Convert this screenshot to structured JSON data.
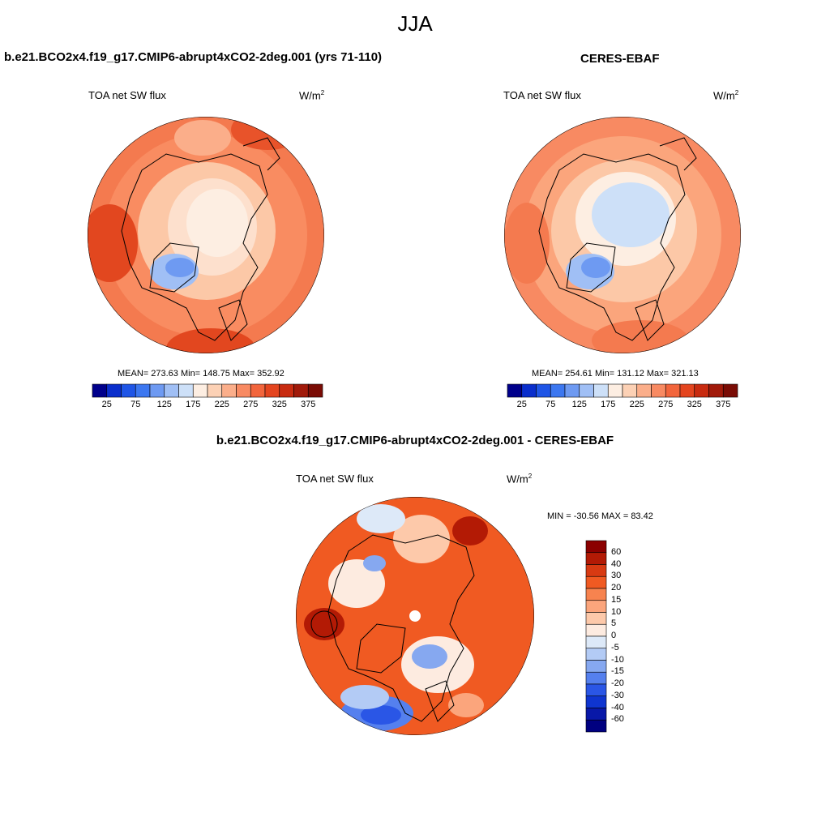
{
  "page": {
    "title": "JJA",
    "top_left_title": "b.e21.BCO2x4.f19_g17.CMIP6-abrupt4xCO2-2deg.001 (yrs 71-110)",
    "top_right_title": "CERES-EBAF",
    "bottom_title": "b.e21.BCO2x4.f19_g17.CMIP6-abrupt4xCO2-2deg.001 - CERES-EBAF"
  },
  "panels": {
    "model": {
      "variable": "TOA net SW flux",
      "units_base": "W/m",
      "units_exp": "2",
      "stats": "MEAN= 273.63  Min= 148.75  Max= 352.92"
    },
    "obs": {
      "variable": "TOA net SW flux",
      "units_base": "W/m",
      "units_exp": "2",
      "stats": "MEAN= 254.61  Min= 131.12  Max= 321.13"
    },
    "diff": {
      "variable": "TOA net SW flux",
      "units_base": "W/m",
      "units_exp": "2",
      "stats": "MIN = -30.56 MAX =  83.42"
    }
  },
  "colorbars": {
    "horizontal": {
      "labels": [
        "25",
        "75",
        "125",
        "175",
        "225",
        "275",
        "325",
        "375"
      ],
      "colors": [
        "#00008b",
        "#0a2ecc",
        "#1f55e6",
        "#3c77f0",
        "#6e9af2",
        "#a0bff5",
        "#cde0f8",
        "#fdeee2",
        "#fcd1b5",
        "#fbae8a",
        "#f88a62",
        "#f2653c",
        "#e4451f",
        "#c82b10",
        "#a11a0a",
        "#7a0c05"
      ]
    },
    "vertical": {
      "labels": [
        "60",
        "40",
        "30",
        "20",
        "15",
        "10",
        "5",
        "0",
        "-5",
        "-10",
        "-15",
        "-20",
        "-30",
        "-40",
        "-60"
      ],
      "colors": [
        "#8b0000",
        "#b31a05",
        "#d83a12",
        "#f05a22",
        "#f7834f",
        "#fba57c",
        "#fdc9aa",
        "#fdebe0",
        "#dde9f8",
        "#b3cbf5",
        "#86a8f0",
        "#5580ee",
        "#2a56e6",
        "#0f35d0",
        "#0818a8",
        "#000080"
      ]
    }
  }
}
